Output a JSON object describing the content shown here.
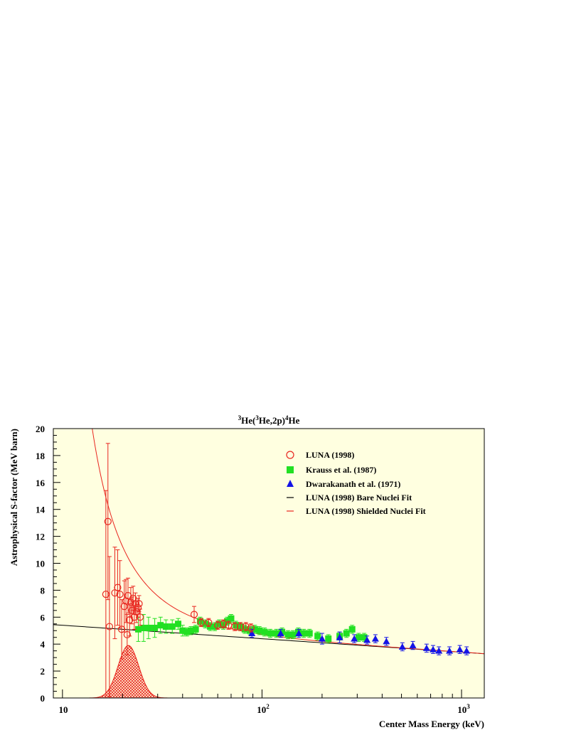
{
  "chart_data": {
    "type": "scatter",
    "title": {
      "pre": "3",
      "mid1": "He(",
      "sup2": "3",
      "mid2": "He,2p)",
      "sup3": "4",
      "post": "He"
    },
    "xlabel": "Center Mass Energy (keV)",
    "ylabel": "Astrophysical S-factor (MeV barn)",
    "x_scale": "log",
    "xlim": [
      9,
      1300
    ],
    "ylim": [
      0,
      20
    ],
    "y_ticks": [
      "0",
      "2",
      "4",
      "6",
      "8",
      "10",
      "12",
      "14",
      "16",
      "18",
      "20"
    ],
    "x_tick_labels": {
      "t10": "10",
      "t100_base": "10",
      "t100_exp": "2",
      "t1000_base": "10",
      "t1000_exp": "3"
    },
    "legend_position": "top-right",
    "legend": [
      {
        "label": "LUNA (1998)",
        "marker": "open-circle",
        "color": "#e8261f"
      },
      {
        "label": "Krauss et al. (1987)",
        "marker": "filled-square",
        "color": "#22e022"
      },
      {
        "label": "Dwarakanath et al. (1971)",
        "marker": "filled-triangle",
        "color": "#1414e6"
      },
      {
        "label": "LUNA (1998) Bare Nuclei Fit",
        "marker": "line",
        "color": "#000000"
      },
      {
        "label": "LUNA (1998) Shielded Nuclei Fit",
        "marker": "line",
        "color": "#e8261f"
      }
    ],
    "colors": {
      "plot_bg": "#ffffe0",
      "luna": "#e8261f",
      "krauss": "#22e022",
      "dwarakanath": "#1414e6",
      "bare_fit": "#000000",
      "shielded_fit": "#e8261f"
    },
    "series": [
      {
        "key": "luna",
        "points": [
          [
            16.5,
            7.7,
            7.7
          ],
          [
            16.9,
            13.1,
            5.8
          ],
          [
            17.2,
            5.3,
            5.2
          ],
          [
            18.3,
            7.8,
            3.4
          ],
          [
            18.9,
            8.2,
            2.8
          ],
          [
            19.4,
            7.7,
            2.5
          ],
          [
            19.8,
            5.1,
            2.2
          ],
          [
            20.4,
            6.8,
            1.9
          ],
          [
            20.8,
            7.2,
            1.6
          ],
          [
            21.1,
            4.7,
            1.5
          ],
          [
            21.3,
            7.6,
            1.3
          ],
          [
            21.7,
            5.8,
            1.2
          ],
          [
            22.0,
            7.1,
            1.1
          ],
          [
            22.3,
            6.5,
            1.0
          ],
          [
            22.6,
            7.4,
            0.9
          ],
          [
            22.9,
            6.0,
            0.9
          ],
          [
            23.2,
            7.0,
            0.8
          ],
          [
            23.5,
            6.4,
            0.8
          ],
          [
            23.9,
            6.7,
            0.7
          ],
          [
            24.2,
            7.0,
            0.6
          ],
          [
            24.5,
            6.0,
            0.6
          ],
          [
            45.7,
            6.2,
            0.6
          ],
          [
            49.5,
            5.6,
            0.3
          ],
          [
            54.0,
            5.6,
            0.3
          ],
          [
            60.0,
            5.4,
            0.3
          ],
          [
            64.0,
            5.5,
            0.3
          ],
          [
            68.0,
            5.4,
            0.3
          ],
          [
            73.0,
            5.3,
            0.3
          ],
          [
            78.0,
            5.3,
            0.3
          ],
          [
            83.0,
            5.3,
            0.3
          ],
          [
            88.0,
            5.2,
            0.3
          ]
        ]
      },
      {
        "key": "krauss",
        "points": [
          [
            24.0,
            5.1,
            0.9
          ],
          [
            25.5,
            5.2,
            1.0
          ],
          [
            27.0,
            5.2,
            0.8
          ],
          [
            29.0,
            5.2,
            0.7
          ],
          [
            31.0,
            5.4,
            0.6
          ],
          [
            33.0,
            5.3,
            0.5
          ],
          [
            35.5,
            5.3,
            0.5
          ],
          [
            38.0,
            5.5,
            0.4
          ],
          [
            40.0,
            5.0,
            0.4
          ],
          [
            42.0,
            4.9,
            0.3
          ],
          [
            44.0,
            5.0,
            0.3
          ],
          [
            46.5,
            5.1,
            0.3
          ],
          [
            49.0,
            5.7,
            0.3
          ],
          [
            52.0,
            5.5,
            0.3
          ],
          [
            55.0,
            5.3,
            0.3
          ],
          [
            58.0,
            5.3,
            0.3
          ],
          [
            61.0,
            5.5,
            0.3
          ],
          [
            64.0,
            5.4,
            0.3
          ],
          [
            67.0,
            5.7,
            0.3
          ],
          [
            70.0,
            5.9,
            0.3
          ],
          [
            74.0,
            5.4,
            0.3
          ],
          [
            78.0,
            5.3,
            0.3
          ],
          [
            82.0,
            5.1,
            0.3
          ],
          [
            87.0,
            5.0,
            0.3
          ],
          [
            92.0,
            5.1,
            0.3
          ],
          [
            97.0,
            5.0,
            0.3
          ],
          [
            103.0,
            4.9,
            0.3
          ],
          [
            110.0,
            4.8,
            0.3
          ],
          [
            118.0,
            4.8,
            0.3
          ],
          [
            126.0,
            4.9,
            0.3
          ],
          [
            135.0,
            4.7,
            0.3
          ],
          [
            143.0,
            4.7,
            0.3
          ],
          [
            152.0,
            4.9,
            0.3
          ],
          [
            162.0,
            4.8,
            0.3
          ],
          [
            173.0,
            4.8,
            0.3
          ],
          [
            190.0,
            4.6,
            0.3
          ],
          [
            215.0,
            4.4,
            0.3
          ],
          [
            245.0,
            4.6,
            0.3
          ],
          [
            265.0,
            4.8,
            0.3
          ],
          [
            283.0,
            5.1,
            0.3
          ],
          [
            305.0,
            4.5,
            0.3
          ],
          [
            325.0,
            4.5,
            0.3
          ]
        ]
      },
      {
        "key": "dwarakanath",
        "points": [
          [
            89.0,
            4.8,
            0.3
          ],
          [
            124.0,
            4.8,
            0.3
          ],
          [
            153.0,
            4.8,
            0.3
          ],
          [
            200.0,
            4.4,
            0.4
          ],
          [
            245.0,
            4.5,
            0.4
          ],
          [
            290.0,
            4.4,
            0.3
          ],
          [
            336.0,
            4.3,
            0.3
          ],
          [
            370.0,
            4.4,
            0.3
          ],
          [
            420.0,
            4.2,
            0.3
          ],
          [
            505.0,
            3.8,
            0.3
          ],
          [
            570.0,
            3.9,
            0.3
          ],
          [
            668.0,
            3.7,
            0.3
          ],
          [
            720.0,
            3.6,
            0.3
          ],
          [
            770.0,
            3.5,
            0.3
          ],
          [
            870.0,
            3.5,
            0.3
          ],
          [
            980.0,
            3.6,
            0.3
          ],
          [
            1060.0,
            3.5,
            0.3
          ]
        ]
      }
    ],
    "bare_fit": {
      "S0": 5.4,
      "slope_per_decade": -1.0
    },
    "shielded_fit": {
      "screening_potential_eV": 294
    },
    "gamow_peak": {
      "center_keV": 21.4,
      "peak_value": 3.9,
      "width_log": 0.052
    }
  }
}
